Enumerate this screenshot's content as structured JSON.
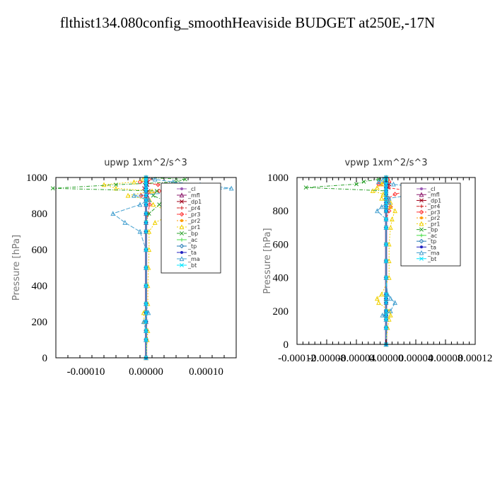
{
  "title": "flthist134.080config_smoothHeaviside  BUDGET at250E,-17N",
  "colors": {
    "_cl": "#9b59b6",
    "_mfl": "#8e1b6e",
    "_dp1": "#a0001a",
    "_pr4": "#d02020",
    "_pr3": "#ff3030",
    "_pr2": "#ff9a00",
    "_pr1": "#f0d000",
    "_bp": "#2aa02a",
    "_ac": "#44dd44",
    "_tp": "#1f77b4",
    "_ta": "#2020c0",
    "_ma": "#44a0d0",
    "_bt": "#00e5ff"
  },
  "chart_data": [
    {
      "type": "line",
      "title": "upwp   1xm^2/s^3",
      "ylabel": "Pressure [hPa]",
      "xlabel": "",
      "xlim": [
        -0.00015,
        0.00015
      ],
      "ylim": [
        1000,
        0
      ],
      "xticks": [
        -0.0001,
        0,
        0.0001
      ],
      "xtick_labels": [
        "-0.00010",
        "0.00000",
        "0.00010"
      ],
      "yticks": [
        0,
        200,
        400,
        600,
        800,
        1000
      ],
      "ytick_labels": [
        "0",
        "200",
        "400",
        "600",
        "800",
        "1000"
      ],
      "legend_position": "top-right",
      "y": [
        0,
        100,
        150,
        200,
        250,
        300,
        400,
        500,
        600,
        700,
        750,
        800,
        850,
        875,
        900,
        925,
        940,
        960,
        975,
        990,
        1000
      ],
      "series": [
        {
          "name": "_cl",
          "x": [
            0,
            0,
            0,
            0,
            0,
            0,
            0,
            0,
            0,
            0,
            0,
            0,
            0,
            0,
            0,
            0,
            0,
            0,
            0,
            0,
            0
          ]
        },
        {
          "name": "_mfl",
          "x": [
            0,
            0,
            0,
            0,
            0,
            0,
            0,
            0,
            0,
            0,
            0,
            0,
            0,
            0,
            0,
            0,
            0,
            0,
            0,
            0,
            0
          ]
        },
        {
          "name": "_dp1",
          "x": [
            0,
            0,
            0,
            0,
            0,
            0,
            0,
            0,
            0,
            0,
            0,
            0,
            0,
            0,
            2e-06,
            4e-06,
            -3e-06,
            2e-06,
            3e-06,
            2e-06,
            0
          ]
        },
        {
          "name": "_pr4",
          "x": [
            0,
            0,
            0,
            0,
            0,
            0,
            0,
            0,
            0,
            0,
            0,
            0,
            0,
            0,
            0,
            0,
            0,
            0,
            0,
            0,
            0
          ]
        },
        {
          "name": "_pr3",
          "x": [
            0,
            0,
            0,
            0,
            0,
            0,
            0,
            0,
            0,
            0,
            0,
            3e-06,
            6e-06,
            4e-06,
            -8e-06,
            2.2e-05,
            5.5e-05,
            2e-05,
            -1e-05,
            5e-06,
            0
          ]
        },
        {
          "name": "_pr2",
          "x": [
            0,
            0,
            0,
            0,
            0,
            0,
            0,
            0,
            0,
            0,
            0,
            0,
            0,
            0,
            0,
            0,
            0,
            0,
            0,
            0,
            0
          ]
        },
        {
          "name": "_pr1",
          "x": [
            0,
            2e-06,
            3e-06,
            -3e-06,
            -4e-06,
            3e-06,
            3e-06,
            4e-06,
            5e-06,
            5e-06,
            1.5e-05,
            4.5e-05,
            1.2e-05,
            6e-06,
            -3e-05,
            1e-05,
            -5e-05,
            -7e-05,
            -2e-05,
            -5e-06,
            0
          ]
        },
        {
          "name": "_bp",
          "x": [
            0,
            0,
            0,
            0,
            0,
            0,
            0,
            0,
            0,
            0,
            0,
            5e-06,
            2.2e-05,
            2.8e-05,
            1.2e-05,
            1.8e-05,
            -0.000155,
            -5e-05,
            5e-05,
            6.5e-05,
            0
          ]
        },
        {
          "name": "_ac",
          "x": [
            0,
            0,
            0,
            0,
            0,
            0,
            0,
            0,
            0,
            0,
            0,
            0,
            0,
            0,
            0,
            0,
            0,
            0,
            0,
            0,
            0
          ]
        },
        {
          "name": "_tp",
          "x": [
            0,
            0,
            0,
            0,
            0,
            0,
            0,
            0,
            0,
            0,
            0,
            0,
            0,
            0,
            0,
            0,
            0,
            0,
            0,
            0,
            0
          ]
        },
        {
          "name": "_ta",
          "x": [
            0,
            0,
            0,
            0,
            0,
            0,
            0,
            0,
            0,
            0,
            0,
            0,
            0,
            0,
            0,
            0,
            0,
            0,
            0,
            0,
            0
          ]
        },
        {
          "name": "_ma",
          "x": [
            0,
            0,
            0,
            -4e-06,
            4e-06,
            0,
            0,
            0,
            0,
            -1e-05,
            -3.5e-05,
            -5.5e-05,
            -1e-05,
            5e-06,
            -2e-05,
            7.5e-05,
            0.000142,
            9e-05,
            4.5e-05,
            1.5e-05,
            0
          ]
        },
        {
          "name": "_bt",
          "x": [
            0,
            0,
            0,
            0,
            0,
            0,
            0,
            0,
            0,
            0,
            0,
            0,
            0,
            0,
            0,
            0,
            0,
            0,
            0,
            0,
            0
          ]
        }
      ]
    },
    {
      "type": "line",
      "title": "vpwp   1xm^2/s^3",
      "ylabel": "Pressure [hPa]",
      "xlabel": "",
      "xlim": [
        -0.00012,
        0.00012
      ],
      "ylim": [
        1000,
        0
      ],
      "xticks": [
        -0.00012,
        -8e-05,
        -4e-05,
        0,
        4e-05,
        8e-05,
        0.00012
      ],
      "xtick_labels": [
        "-0.00012",
        "-0.00008",
        "-0.00004",
        "0.00000",
        "0.00004",
        "0.00008",
        "0.00012"
      ],
      "yticks": [
        0,
        200,
        400,
        600,
        800,
        1000
      ],
      "ytick_labels": [
        "0",
        "200",
        "400",
        "600",
        "800",
        "1000"
      ],
      "legend_position": "top-right",
      "y": [
        0,
        100,
        150,
        175,
        200,
        250,
        275,
        300,
        400,
        500,
        600,
        700,
        750,
        800,
        825,
        850,
        875,
        900,
        920,
        940,
        960,
        975,
        990,
        1000
      ],
      "series": [
        {
          "name": "_cl",
          "x": [
            0,
            0,
            0,
            0,
            0,
            0,
            0,
            0,
            0,
            0,
            0,
            0,
            0,
            0,
            0,
            0,
            0,
            0,
            0,
            0,
            0,
            0,
            0,
            0
          ]
        },
        {
          "name": "_mfl",
          "x": [
            0,
            0,
            0,
            0,
            0,
            0,
            0,
            0,
            0,
            0,
            0,
            0,
            0,
            0,
            0,
            0,
            0,
            0,
            0,
            0,
            0,
            0,
            0,
            0
          ]
        },
        {
          "name": "_dp1",
          "x": [
            0,
            0,
            0,
            0,
            0,
            0,
            0,
            0,
            0,
            0,
            0,
            0,
            0,
            0,
            0,
            0,
            0,
            0,
            0,
            3e-06,
            4e-06,
            2e-06,
            1e-06,
            0
          ]
        },
        {
          "name": "_pr4",
          "x": [
            0,
            0,
            0,
            0,
            0,
            0,
            0,
            0,
            0,
            0,
            0,
            0,
            0,
            0,
            0,
            0,
            0,
            0,
            0,
            0,
            0,
            0,
            0,
            0
          ]
        },
        {
          "name": "_pr3",
          "x": [
            0,
            0,
            0,
            0,
            0,
            0,
            0,
            0,
            0,
            0,
            0,
            0,
            0,
            4e-06,
            6e-06,
            3e-06,
            3e-06,
            1.2e-05,
            3e-05,
            2e-06,
            -1e-05,
            4e-06,
            2e-06,
            0
          ]
        },
        {
          "name": "_pr2",
          "x": [
            0,
            0,
            0,
            0,
            0,
            0,
            0,
            0,
            0,
            0,
            0,
            0,
            0,
            0,
            0,
            0,
            0,
            0,
            0,
            0,
            0,
            0,
            0,
            0
          ]
        },
        {
          "name": "_pr1",
          "x": [
            0,
            2e-06,
            4e-06,
            6e-06,
            4e-06,
            -1e-05,
            -1.2e-05,
            -6e-06,
            4e-06,
            4e-06,
            4e-06,
            6e-06,
            8e-06,
            1.2e-05,
            6e-06,
            6e-06,
            -6e-06,
            -4e-06,
            -1.8e-05,
            -1.2e-05,
            -6e-06,
            -3e-06,
            1e-06,
            0
          ]
        },
        {
          "name": "_bp",
          "x": [
            0,
            0,
            0,
            0,
            0,
            0,
            0,
            0,
            0,
            0,
            0,
            0,
            0,
            0,
            0,
            0,
            0,
            0,
            0,
            -0.000108,
            -4e-05,
            -3e-05,
            -1e-05,
            0
          ]
        },
        {
          "name": "_ac",
          "x": [
            0,
            0,
            0,
            0,
            0,
            0,
            0,
            0,
            0,
            0,
            0,
            0,
            0,
            0,
            0,
            0,
            0,
            0,
            0,
            0,
            0,
            0,
            0,
            0
          ]
        },
        {
          "name": "_tp",
          "x": [
            0,
            0,
            0,
            0,
            0,
            0,
            0,
            0,
            0,
            0,
            0,
            0,
            0,
            0,
            0,
            0,
            0,
            0,
            0,
            0,
            0,
            0,
            0,
            0
          ]
        },
        {
          "name": "_ta",
          "x": [
            0,
            0,
            0,
            0,
            0,
            0,
            0,
            0,
            0,
            0,
            0,
            0,
            0,
            0,
            0,
            0,
            0,
            0,
            0,
            0,
            0,
            0,
            0,
            0
          ]
        },
        {
          "name": "_ma",
          "x": [
            0,
            0,
            0,
            -5e-06,
            6e-06,
            1.2e-05,
            6e-06,
            2e-06,
            0,
            0,
            0,
            0,
            0,
            -1.2e-05,
            -6e-06,
            4e-06,
            4e-06,
            4e-05,
            8e-05,
            4e-05,
            1e-05,
            -1e-05,
            -4e-06,
            0
          ]
        },
        {
          "name": "_bt",
          "x": [
            0,
            0,
            0,
            0,
            0,
            0,
            0,
            0,
            0,
            0,
            0,
            0,
            0,
            0,
            0,
            0,
            0,
            0,
            0,
            0,
            0,
            0,
            0,
            0
          ]
        }
      ]
    }
  ]
}
